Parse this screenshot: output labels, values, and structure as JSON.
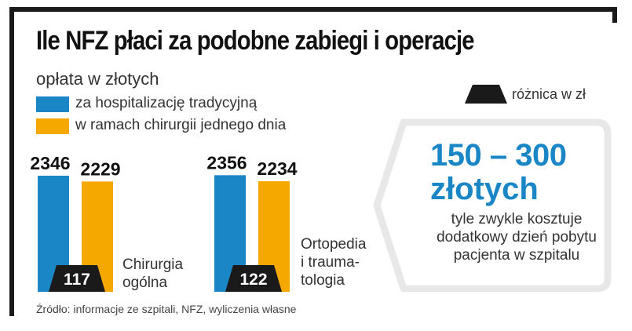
{
  "title": "Ile NFZ płaci za podobne zabiegi i operacje",
  "subtitle": "opłata w złotych",
  "legend": {
    "series1": "za hospitalizację tradycyjną",
    "series2": "w ramach chirurgii jednego dnia",
    "difference": "różnica w zł"
  },
  "colors": {
    "series1": "#1a86c6",
    "series2": "#f5a800",
    "difference": "#1a1a1a",
    "callout_border": "#e8e8e8"
  },
  "chart_data": {
    "type": "bar",
    "categories": [
      "Chirurgia\nogólna",
      "Ortopedia\ni trauma-\ntologia"
    ],
    "series": [
      {
        "name": "za hospitalizację tradycyjną",
        "values": [
          2346,
          2356
        ]
      },
      {
        "name": "w ramach chirurgii jednego dnia",
        "values": [
          2229,
          2234
        ]
      }
    ],
    "differences": [
      117,
      122
    ],
    "value_labels": [
      "2346",
      "2229",
      "2356",
      "2234"
    ],
    "difference_labels": [
      "117",
      "122"
    ]
  },
  "callout": {
    "range": "150 – 300",
    "unit": "złotych",
    "text": "tyle zwykle kosztuje dodatkowy dzień pobytu pacjenta w szpitalu"
  },
  "source": "Źródło: informacje ze szpitali, NFZ, wyliczenia własne"
}
